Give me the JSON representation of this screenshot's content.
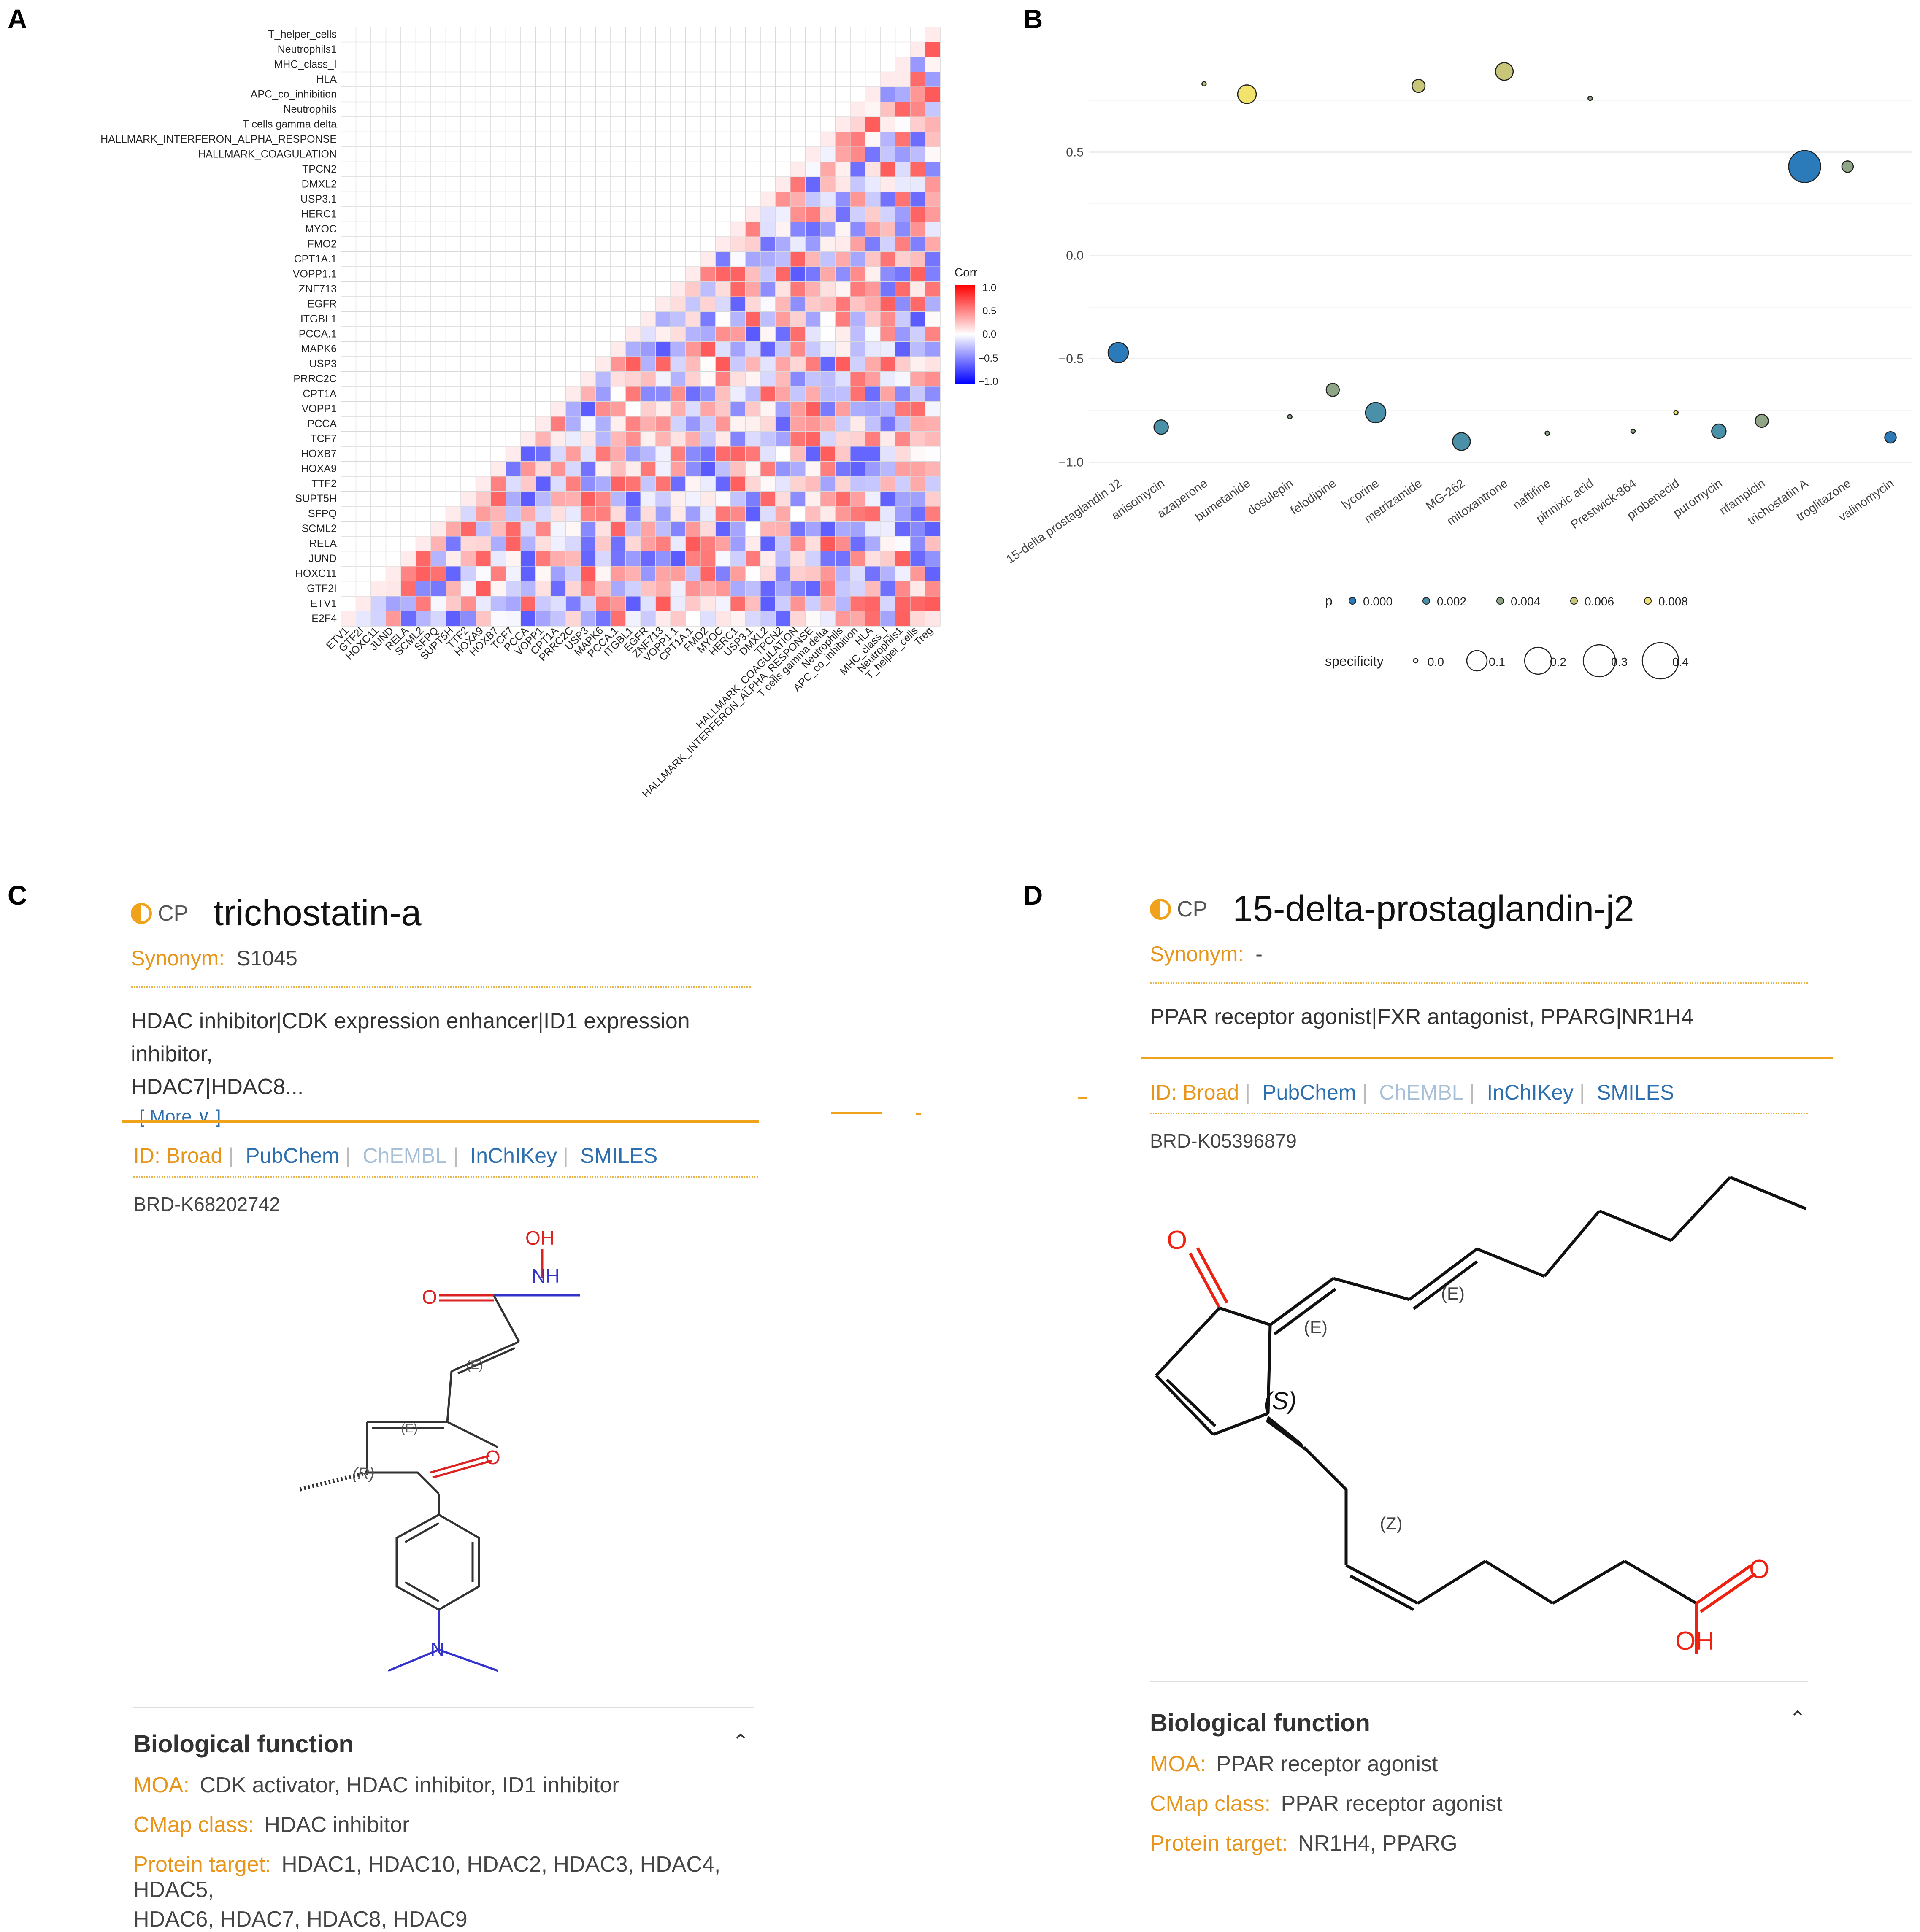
{
  "panels": {
    "a": "A",
    "b": "B",
    "c": "C",
    "d": "D"
  },
  "chart_data": [
    {
      "type": "heatmap",
      "legend_title": "Corr",
      "legend_ticks": [
        "1.0",
        "0.5",
        "0.0",
        "−0.5",
        "−1.0"
      ],
      "colors": {
        "high": "#ff0000",
        "mid": "#ffffff",
        "low": "#0000ff",
        "grid": "#d9d9d9"
      },
      "rows": [
        "T_helper_cells",
        "Neutrophils1",
        "MHC_class_I",
        "HLA",
        "APC_co_inhibition",
        "Neutrophils",
        "T cells gamma delta",
        "HALLMARK_INTERFERON_ALPHA_RESPONSE",
        "HALLMARK_COAGULATION",
        "TPCN2",
        "DMXL2",
        "USP3.1",
        "HERC1",
        "MYOC",
        "FMO2",
        "CPT1A.1",
        "VOPP1.1",
        "ZNF713",
        "EGFR",
        "ITGBL1",
        "PCCA.1",
        "MAPK6",
        "USP3",
        "PRRC2C",
        "CPT1A",
        "VOPP1",
        "PCCA",
        "TCF7",
        "HOXB7",
        "HOXA9",
        "TTF2",
        "SUPT5H",
        "SFPQ",
        "SCML2",
        "RELA",
        "JUND",
        "HOXC11",
        "GTF2I",
        "ETV1",
        "E2F4"
      ],
      "columns": [
        "ETV1",
        "GTF2I",
        "HOXC11",
        "JUND",
        "RELA",
        "SCML2",
        "SFPQ",
        "SUPT5H",
        "TTF2",
        "HOXA9",
        "HOXB7",
        "TCF7",
        "PCCA",
        "VOPP1",
        "CPT1A",
        "PRRC2C",
        "USP3",
        "MAPK6",
        "PCCA.1",
        "ITGBL1",
        "EGFR",
        "ZNF713",
        "VOPP1.1",
        "CPT1A.1",
        "FMO2",
        "MYOC",
        "HERC1",
        "USP3.1",
        "DMXL2",
        "TPCN2",
        "HALLMARK_COAGULATION",
        "HALLMARK_INTERFERON_ALPHA_RESPONSE",
        "T cells gamma delta",
        "Neutrophils",
        "APC_co_inhibition",
        "HLA",
        "MHC_class_I",
        "Neutrophils1",
        "T_helper_cells",
        "Treg"
      ]
    },
    {
      "type": "scatter",
      "x_categories": [
        "15-delta prostaglandin J2",
        "anisomycin",
        "azaperone",
        "bumetanide",
        "dosulepin",
        "felodipine",
        "lycorine",
        "metrizamide",
        "MG-262",
        "mitoxantrone",
        "naftifine",
        "pirinixic acid",
        "Prestwick-864",
        "probenecid",
        "puromycin",
        "rifampicin",
        "trichostatin A",
        "troglitazone",
        "valinomycin"
      ],
      "yticks": [
        "0.5",
        "0.0",
        "−0.5",
        "−1.0"
      ],
      "ylim": [
        -1.05,
        0.95
      ],
      "points": [
        {
          "x": "15-delta prostaglandin J2",
          "y": -0.47,
          "p": 0.0005,
          "specificity": 0.1
        },
        {
          "x": "anisomycin",
          "y": -0.83,
          "p": 0.001,
          "specificity": 0.04
        },
        {
          "x": "azaperone",
          "y": 0.83,
          "p": 0.005,
          "specificity": 0.0
        },
        {
          "x": "bumetanide",
          "y": 0.78,
          "p": 0.008,
          "specificity": 0.08
        },
        {
          "x": "dosulepin",
          "y": -0.78,
          "p": 0.003,
          "specificity": 0.0
        },
        {
          "x": "felodipine",
          "y": -0.65,
          "p": 0.003,
          "specificity": 0.03
        },
        {
          "x": "lycorine",
          "y": -0.76,
          "p": 0.002,
          "specificity": 0.1
        },
        {
          "x": "metrizamide",
          "y": 0.82,
          "p": 0.006,
          "specificity": 0.03
        },
        {
          "x": "MG-262",
          "y": -0.9,
          "p": 0.001,
          "specificity": 0.07
        },
        {
          "x": "mitoxantrone",
          "y": 0.89,
          "p": 0.005,
          "specificity": 0.07
        },
        {
          "x": "naftifine",
          "y": -0.86,
          "p": 0.003,
          "specificity": 0.0
        },
        {
          "x": "pirinixic acid",
          "y": 0.76,
          "p": 0.004,
          "specificity": 0.0
        },
        {
          "x": "Prestwick-864",
          "y": -0.85,
          "p": 0.003,
          "specificity": 0.0
        },
        {
          "x": "probenecid",
          "y": -0.76,
          "p": 0.007,
          "specificity": 0.0
        },
        {
          "x": "puromycin",
          "y": -0.85,
          "p": 0.001,
          "specificity": 0.04
        },
        {
          "x": "rifampicin",
          "y": -0.8,
          "p": 0.004,
          "specificity": 0.03
        },
        {
          "x": "trichostatin A",
          "y": 0.43,
          "p": 0.0,
          "specificity": 0.3
        },
        {
          "x": "troglitazone",
          "y": 0.43,
          "p": 0.003,
          "specificity": 0.02
        },
        {
          "x": "valinomycin",
          "y": -0.88,
          "p": 0.0,
          "specificity": 0.02
        }
      ],
      "legend_p": {
        "title": "p",
        "values": [
          "0.000",
          "0.002",
          "0.004",
          "0.006",
          "0.008"
        ],
        "colors": [
          "#2b7bba",
          "#4a90a8",
          "#8fa588",
          "#c8c779",
          "#f2e36d"
        ]
      },
      "legend_specificity": {
        "title": "specificity",
        "values": [
          "0.0",
          "0.1",
          "0.2",
          "0.3",
          "0.4"
        ]
      }
    }
  ],
  "card_c": {
    "cp": "CP",
    "name": "trichostatin-a",
    "synonym_label": "Synonym:",
    "synonym_value": "S1045",
    "moa_line1": "HDAC inhibitor|CDK expression enhancer|ID1 expression inhibitor,",
    "moa_line2": "HDAC7|HDAC8...",
    "more": "[ More ∨ ]",
    "id_label": "ID: Broad",
    "pubchem": "PubChem",
    "chembl": "ChEMBL",
    "inchikey": "InChIKey",
    "smiles": "SMILES",
    "brd": "BRD-K68202742",
    "bio_title": "Biological function",
    "moa_label": "MOA:",
    "moa_value": "CDK activator, HDAC inhibitor, ID1 inhibitor",
    "cmap_label": "CMap class:",
    "cmap_value": "HDAC inhibitor",
    "target_label": "Protein target:",
    "target_value1": "HDAC1, HDAC10, HDAC2, HDAC3, HDAC4, HDAC5,",
    "target_value2": "HDAC6, HDAC7, HDAC8, HDAC9",
    "atoms": {
      "o1": "O",
      "oh": "OH",
      "nh": "NH",
      "o2": "O",
      "n": "N",
      "e1": "(E)",
      "e2": "(E)",
      "r": "(R)"
    }
  },
  "card_d": {
    "cp": "CP",
    "name": "15-delta-prostaglandin-j2",
    "synonym_label": "Synonym:",
    "synonym_value": "-",
    "moa_line1": "PPAR receptor agonist|FXR antagonist, PPARG|NR1H4",
    "id_label": "ID: Broad",
    "pubchem": "PubChem",
    "chembl": "ChEMBL",
    "inchikey": "InChIKey",
    "smiles": "SMILES",
    "brd": "BRD-K05396879",
    "bio_title": "Biological function",
    "moa_label": "MOA:",
    "moa_value": "PPAR receptor agonist",
    "cmap_label": "CMap class:",
    "cmap_value": "PPAR receptor agonist",
    "target_label": "Protein target:",
    "target_value": "NR1H4, PPARG",
    "atoms": {
      "o1": "O",
      "o2": "O",
      "oh": "OH",
      "e1": "(E)",
      "e2": "(E)",
      "s": "(S)",
      "z": "(Z)"
    }
  }
}
